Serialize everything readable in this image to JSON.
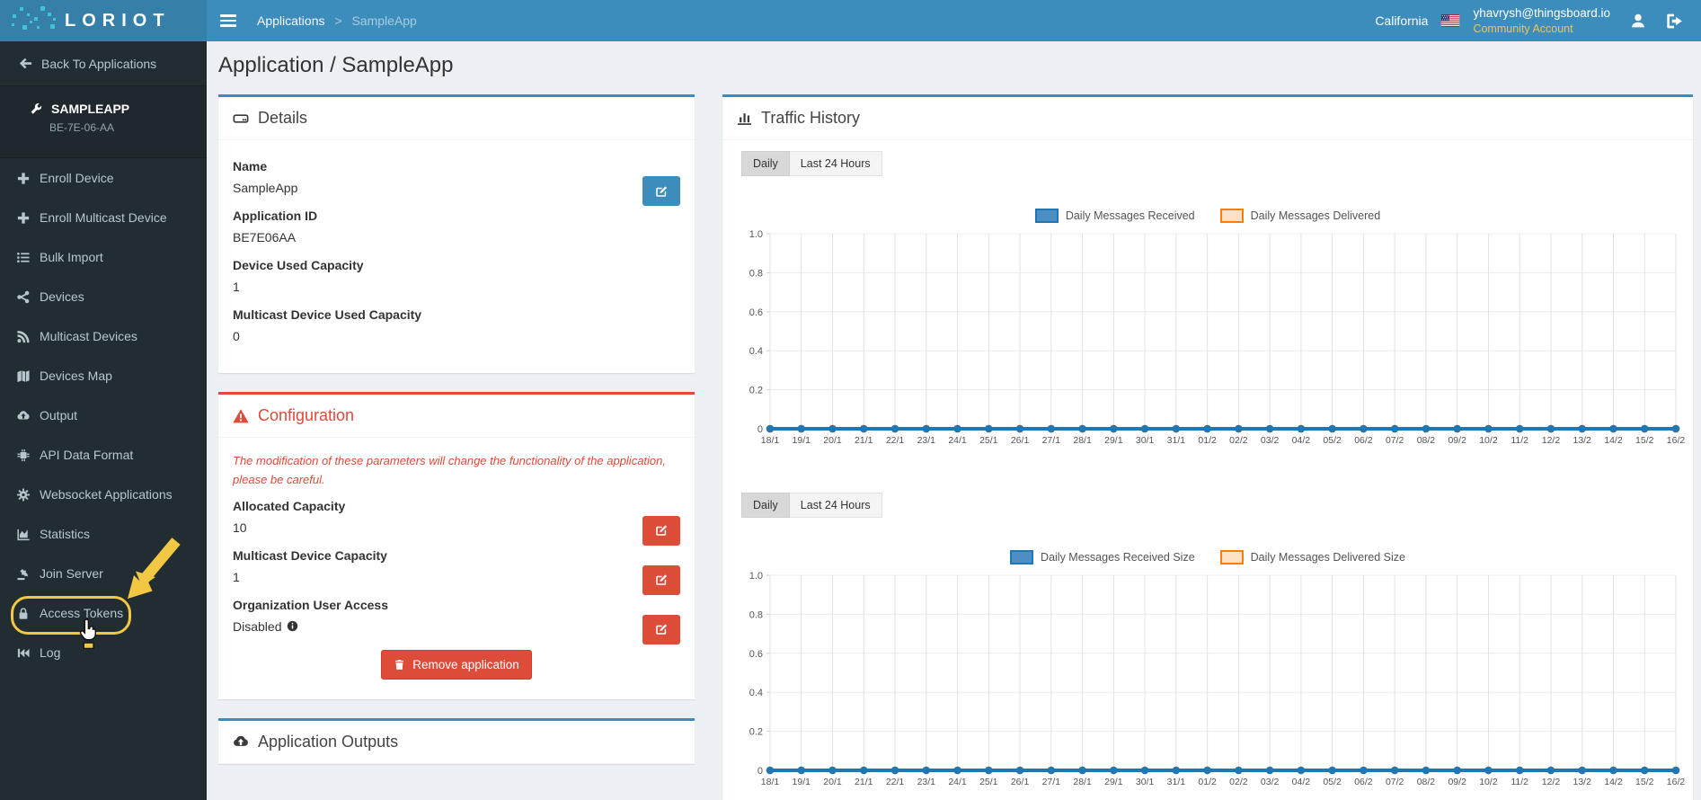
{
  "colors": {
    "navbar": "#3c8dbc",
    "logo_bg": "#367fa9",
    "sidebar": "#222d32",
    "accent_blue": "#3c8dbc",
    "danger_red": "#dd4b39",
    "highlight_yellow": "#f2c744",
    "account_gold": "#ecc45c",
    "chart_blue": "#1f77b4",
    "chart_orange": "#ff7f0e",
    "logo_dots_teal": "#3fc2d2"
  },
  "navbar": {
    "brand": "LORIOT",
    "breadcrumb": {
      "parent": "Applications",
      "separator": ">",
      "current": "SampleApp"
    },
    "region": "California",
    "flag_icon": "us-flag-icon",
    "user_email": "yhavrysh@thingsboard.io",
    "account_type": "Community Account"
  },
  "sidebar": {
    "back_label": "Back To Applications",
    "app": {
      "name": "SAMPLEAPP",
      "id": "BE-7E-06-AA",
      "icon": "wrench-icon"
    },
    "items": [
      {
        "label": "Enroll Device",
        "icon": "plus-icon"
      },
      {
        "label": "Enroll Multicast Device",
        "icon": "plus-icon"
      },
      {
        "label": "Bulk Import",
        "icon": "list-icon"
      },
      {
        "label": "Devices",
        "icon": "devices-icon"
      },
      {
        "label": "Multicast Devices",
        "icon": "rss-icon"
      },
      {
        "label": "Devices Map",
        "icon": "map-icon"
      },
      {
        "label": "Output",
        "icon": "cloud-upload-icon"
      },
      {
        "label": "API Data Format",
        "icon": "api-icon"
      },
      {
        "label": "Websocket Applications",
        "icon": "gear-icon"
      },
      {
        "label": "Statistics",
        "icon": "chart-area-icon"
      },
      {
        "label": "Join Server",
        "icon": "gavel-icon"
      },
      {
        "label": "Access Tokens",
        "icon": "lock-icon",
        "highlighted": true
      },
      {
        "label": "Log",
        "icon": "log-icon"
      }
    ]
  },
  "main": {
    "page_title": "Application / SampleApp",
    "details": {
      "title": "Details",
      "icon": "hdd-icon",
      "fields": [
        {
          "label": "Name",
          "value": "SampleApp",
          "edit": "blue"
        },
        {
          "label": "Application ID",
          "value": "BE7E06AA"
        },
        {
          "label": "Device Used Capacity",
          "value": "1"
        },
        {
          "label": "Multicast Device Used Capacity",
          "value": "0"
        }
      ]
    },
    "configuration": {
      "title": "Configuration",
      "icon": "warning-icon",
      "warning": "The modification of these parameters will change the functionality of the application, please be careful.",
      "fields": [
        {
          "label": "Allocated Capacity",
          "value": "10",
          "edit": "red"
        },
        {
          "label": "Multicast Device Capacity",
          "value": "1",
          "edit": "red"
        },
        {
          "label": "Organization User Access",
          "value": "Disabled",
          "info": true,
          "edit": "red"
        }
      ],
      "remove_button": "Remove application"
    },
    "outputs": {
      "title": "Application Outputs",
      "icon": "cloud-upload-icon"
    }
  },
  "traffic": {
    "title": "Traffic History",
    "icon": "bar-chart-icon",
    "toggles": [
      {
        "label": "Daily",
        "active": true
      },
      {
        "label": "Last 24 Hours",
        "active": false
      }
    ]
  },
  "chart_data": [
    {
      "type": "line",
      "title": "Daily traffic messages",
      "categories": [
        "18/1",
        "19/1",
        "20/1",
        "21/1",
        "22/1",
        "23/1",
        "24/1",
        "25/1",
        "26/1",
        "27/1",
        "28/1",
        "29/1",
        "30/1",
        "31/1",
        "01/2",
        "02/2",
        "03/2",
        "04/2",
        "05/2",
        "06/2",
        "07/2",
        "08/2",
        "09/2",
        "10/2",
        "11/2",
        "12/2",
        "13/2",
        "14/2",
        "15/2",
        "16/2"
      ],
      "series": [
        {
          "name": "Daily Messages Received",
          "color": "#1f77b4",
          "legend_fill": "#4d8fc4",
          "values": [
            0,
            0,
            0,
            0,
            0,
            0,
            0,
            0,
            0,
            0,
            0,
            0,
            0,
            0,
            0,
            0,
            0,
            0,
            0,
            0,
            0,
            0,
            0,
            0,
            0,
            0,
            0,
            0,
            0,
            0
          ]
        },
        {
          "name": "Daily Messages Delivered",
          "color": "#ff7f0e",
          "legend_fill": "#ffe2c6",
          "values": [
            0,
            0,
            0,
            0,
            0,
            0,
            0,
            0,
            0,
            0,
            0,
            0,
            0,
            0,
            0,
            0,
            0,
            0,
            0,
            0,
            0,
            0,
            0,
            0,
            0,
            0,
            0,
            0,
            0,
            0
          ]
        }
      ],
      "ylim": [
        0,
        1.0
      ],
      "yticks": [
        0,
        0.2,
        0.4,
        0.6,
        0.8,
        1.0
      ],
      "ytick_labels": [
        "0",
        "0.2",
        "0.4",
        "0.6",
        "0.8",
        "1.0"
      ],
      "grid": true,
      "legend_position": "top-center"
    },
    {
      "type": "line",
      "title": "Daily traffic size",
      "categories": [
        "18/1",
        "19/1",
        "20/1",
        "21/1",
        "22/1",
        "23/1",
        "24/1",
        "25/1",
        "26/1",
        "27/1",
        "28/1",
        "29/1",
        "30/1",
        "31/1",
        "01/2",
        "02/2",
        "03/2",
        "04/2",
        "05/2",
        "06/2",
        "07/2",
        "08/2",
        "09/2",
        "10/2",
        "11/2",
        "12/2",
        "13/2",
        "14/2",
        "15/2",
        "16/2"
      ],
      "series": [
        {
          "name": "Daily Messages Received Size",
          "color": "#1f77b4",
          "legend_fill": "#4d8fc4",
          "values": [
            0,
            0,
            0,
            0,
            0,
            0,
            0,
            0,
            0,
            0,
            0,
            0,
            0,
            0,
            0,
            0,
            0,
            0,
            0,
            0,
            0,
            0,
            0,
            0,
            0,
            0,
            0,
            0,
            0,
            0
          ]
        },
        {
          "name": "Daily Messages Delivered Size",
          "color": "#ff7f0e",
          "legend_fill": "#ffe2c6",
          "values": [
            0,
            0,
            0,
            0,
            0,
            0,
            0,
            0,
            0,
            0,
            0,
            0,
            0,
            0,
            0,
            0,
            0,
            0,
            0,
            0,
            0,
            0,
            0,
            0,
            0,
            0,
            0,
            0,
            0,
            0
          ]
        }
      ],
      "ylim": [
        0,
        1.0
      ],
      "yticks": [
        0,
        0.2,
        0.4,
        0.6,
        0.8,
        1.0
      ],
      "ytick_labels": [
        "0",
        "0.2",
        "0.4",
        "0.6",
        "0.8",
        "1.0"
      ],
      "grid": true,
      "legend_position": "top-center"
    }
  ]
}
